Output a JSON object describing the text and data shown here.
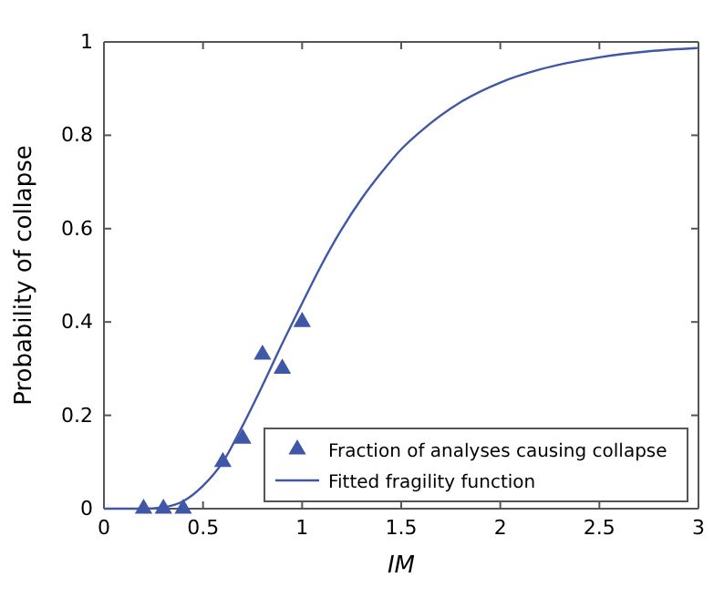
{
  "chart_data": {
    "type": "scatter",
    "xlabel": "IM",
    "ylabel": "Probability of collapse",
    "xlim": [
      0,
      3
    ],
    "ylim": [
      0,
      1
    ],
    "xticks": [
      0,
      0.5,
      1,
      1.5,
      2,
      2.5,
      3
    ],
    "yticks": [
      0,
      0.2,
      0.4,
      0.6,
      0.8,
      1
    ],
    "legend": "bottom right",
    "grid": false,
    "series": [
      {
        "name": "Fraction of analyses causing collapse",
        "marker": "triangle",
        "color": "#3f57a6",
        "x": [
          0.2,
          0.3,
          0.4,
          0.6,
          0.7,
          0.8,
          0.9,
          1.0
        ],
        "values": [
          0,
          0,
          0,
          0.1,
          0.15,
          0.33,
          0.3,
          0.4
        ]
      },
      {
        "name": "Fitted fragility function",
        "type": "line",
        "marker": "none",
        "color": "#3f57a6",
        "x": [
          0,
          0.1,
          0.2,
          0.3,
          0.4,
          0.5,
          0.6,
          0.7,
          0.8,
          0.9,
          1.0,
          1.1,
          1.2,
          1.3,
          1.4,
          1.5,
          1.6,
          1.8,
          2.0,
          2.2,
          2.5,
          2.75,
          3.0
        ],
        "values": [
          0,
          0,
          0,
          0.003,
          0.016,
          0.049,
          0.1,
          0.178,
          0.264,
          0.354,
          0.44,
          0.524,
          0.599,
          0.664,
          0.72,
          0.77,
          0.809,
          0.871,
          0.913,
          0.941,
          0.967,
          0.98,
          0.987
        ]
      }
    ]
  }
}
